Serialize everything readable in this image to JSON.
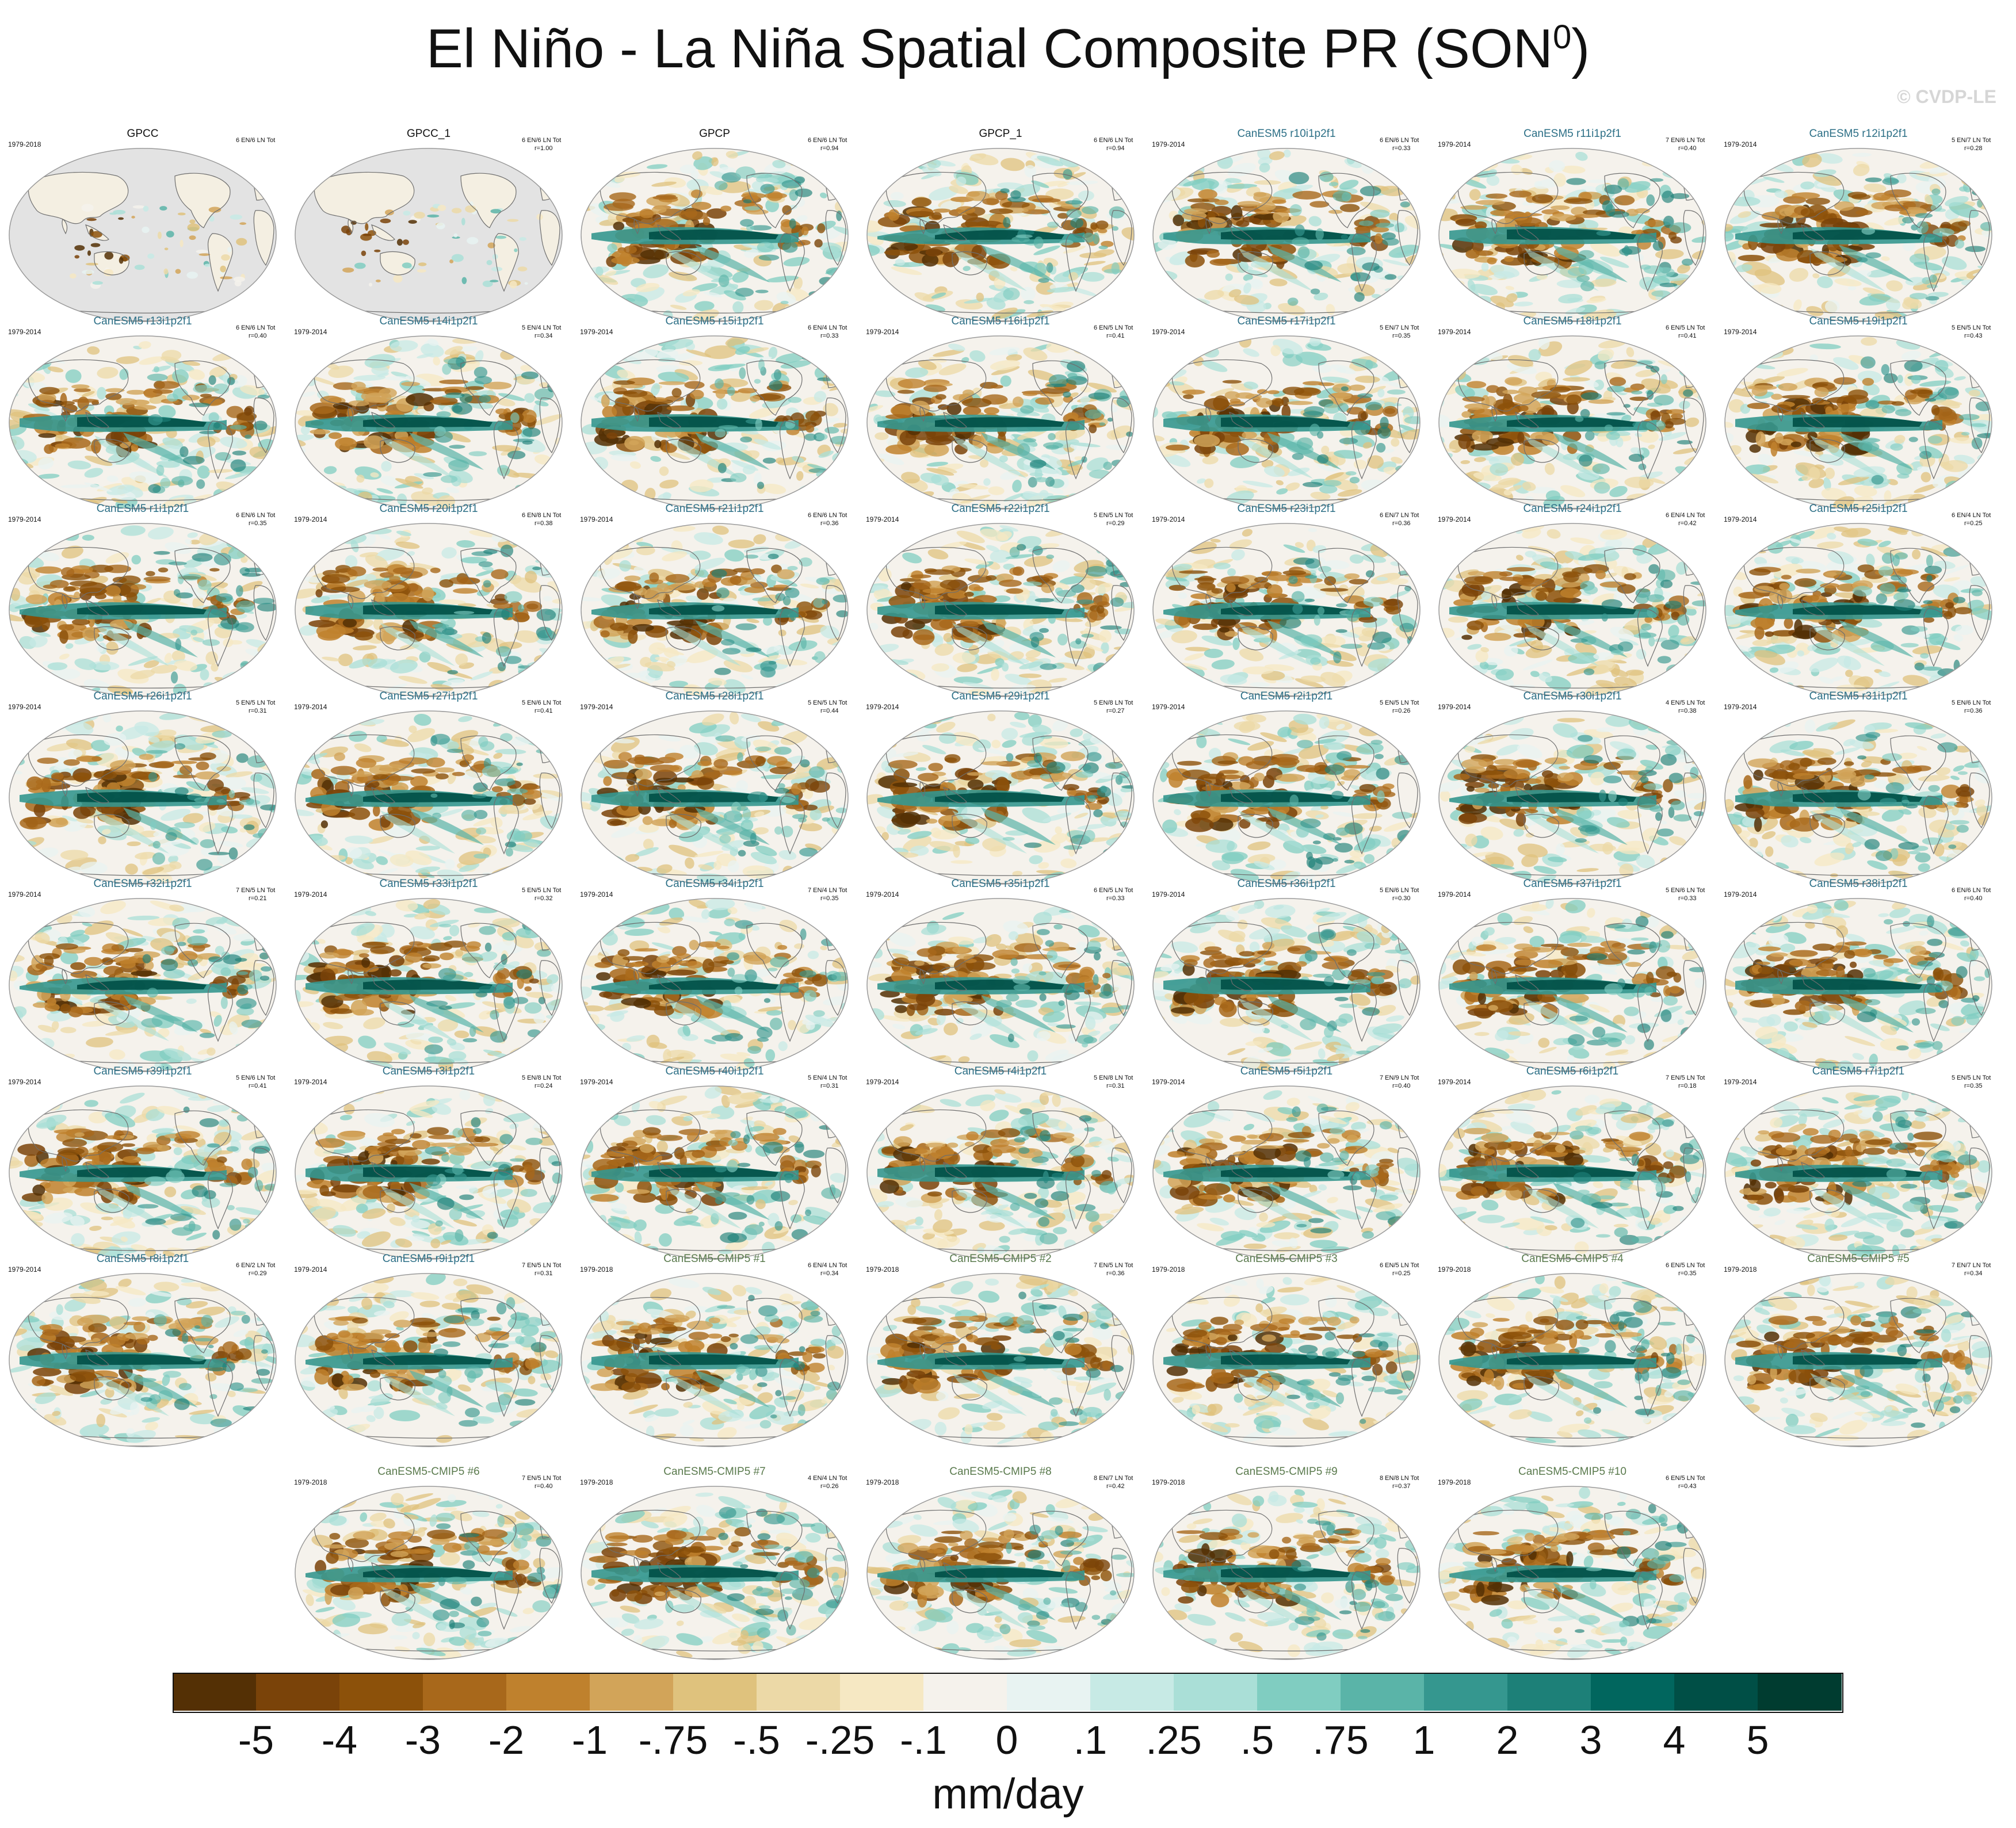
{
  "title": "El Niño - La Niña Spatial Composite PR (SON",
  "title_superscript": "0",
  "title_close": ")",
  "watermark": "© CVDP-LE",
  "colors": {
    "land_missing": "#e3e3e3",
    "ocean_outline": "#9a9a9a",
    "coast": "#6e6e6e"
  },
  "chart_data": {
    "type": "map-composite-grid",
    "variable": "PR",
    "season": "SON0",
    "units": "mm/day",
    "colorbar": {
      "labels": [
        "-5",
        "-4",
        "-3",
        "-2",
        "-1",
        "-.75",
        "-.5",
        "-.25",
        "-.1",
        "0",
        ".1",
        ".25",
        ".5",
        ".75",
        "1",
        "2",
        "3",
        "4",
        "5"
      ],
      "colors": [
        "#543005",
        "#7a4309",
        "#8c510a",
        "#a8681b",
        "#bf812d",
        "#d2a459",
        "#dfc27d",
        "#ecd9a7",
        "#f6e8c3",
        "#f5f2ec",
        "#e8f3f2",
        "#c7eae5",
        "#aadfd7",
        "#80cdc1",
        "#5ab4a8",
        "#35978f",
        "#1d8078",
        "#01665e",
        "#004f46",
        "#003c30"
      ]
    },
    "panels": [
      {
        "title": "GPCC",
        "years": "1979-2018",
        "count": "6 EN/6 LN Tot",
        "r": "",
        "kind": "obs",
        "land_only": true
      },
      {
        "title": "GPCC_1",
        "years": "",
        "count": "6 EN/6 LN Tot",
        "r": "r=1.00",
        "kind": "obs",
        "land_only": true
      },
      {
        "title": "GPCP",
        "years": "",
        "count": "6 EN/6 LN Tot",
        "r": "r=0.94",
        "kind": "obs",
        "land_only": false
      },
      {
        "title": "GPCP_1",
        "years": "",
        "count": "6 EN/6 LN Tot",
        "r": "r=0.94",
        "kind": "obs",
        "land_only": false
      },
      {
        "title": "CanESM5 r10i1p2f1",
        "years": "1979-2014",
        "count": "6 EN/6 LN Tot",
        "r": "r=0.33",
        "kind": "les"
      },
      {
        "title": "CanESM5 r11i1p2f1",
        "years": "1979-2014",
        "count": "7 EN/6 LN Tot",
        "r": "r=0.40",
        "kind": "les"
      },
      {
        "title": "CanESM5 r12i1p2f1",
        "years": "1979-2014",
        "count": "5 EN/7 LN Tot",
        "r": "r=0.28",
        "kind": "les"
      },
      {
        "title": "CanESM5 r13i1p2f1",
        "years": "1979-2014",
        "count": "6 EN/6 LN Tot",
        "r": "r=0.40",
        "kind": "les"
      },
      {
        "title": "CanESM5 r14i1p2f1",
        "years": "1979-2014",
        "count": "5 EN/4 LN Tot",
        "r": "r=0.34",
        "kind": "les"
      },
      {
        "title": "CanESM5 r15i1p2f1",
        "years": "1979-2014",
        "count": "6 EN/4 LN Tot",
        "r": "r=0.33",
        "kind": "les"
      },
      {
        "title": "CanESM5 r16i1p2f1",
        "years": "1979-2014",
        "count": "6 EN/5 LN Tot",
        "r": "r=0.41",
        "kind": "les"
      },
      {
        "title": "CanESM5 r17i1p2f1",
        "years": "1979-2014",
        "count": "5 EN/7 LN Tot",
        "r": "r=0.35",
        "kind": "les"
      },
      {
        "title": "CanESM5 r18i1p2f1",
        "years": "1979-2014",
        "count": "6 EN/5 LN Tot",
        "r": "r=0.41",
        "kind": "les"
      },
      {
        "title": "CanESM5 r19i1p2f1",
        "years": "1979-2014",
        "count": "5 EN/5 LN Tot",
        "r": "r=0.43",
        "kind": "les"
      },
      {
        "title": "CanESM5 r1i1p2f1",
        "years": "1979-2014",
        "count": "6 EN/6 LN Tot",
        "r": "r=0.35",
        "kind": "les"
      },
      {
        "title": "CanESM5 r20i1p2f1",
        "years": "1979-2014",
        "count": "6 EN/8 LN Tot",
        "r": "r=0.38",
        "kind": "les"
      },
      {
        "title": "CanESM5 r21i1p2f1",
        "years": "1979-2014",
        "count": "6 EN/6 LN Tot",
        "r": "r=0.36",
        "kind": "les"
      },
      {
        "title": "CanESM5 r22i1p2f1",
        "years": "1979-2014",
        "count": "5 EN/5 LN Tot",
        "r": "r=0.29",
        "kind": "les"
      },
      {
        "title": "CanESM5 r23i1p2f1",
        "years": "1979-2014",
        "count": "6 EN/7 LN Tot",
        "r": "r=0.36",
        "kind": "les"
      },
      {
        "title": "CanESM5 r24i1p2f1",
        "years": "1979-2014",
        "count": "6 EN/4 LN Tot",
        "r": "r=0.42",
        "kind": "les"
      },
      {
        "title": "CanESM5 r25i1p2f1",
        "years": "1979-2014",
        "count": "6 EN/4 LN Tot",
        "r": "r=0.25",
        "kind": "les"
      },
      {
        "title": "CanESM5 r26i1p2f1",
        "years": "1979-2014",
        "count": "5 EN/5 LN Tot",
        "r": "r=0.31",
        "kind": "les"
      },
      {
        "title": "CanESM5 r27i1p2f1",
        "years": "1979-2014",
        "count": "5 EN/6 LN Tot",
        "r": "r=0.41",
        "kind": "les"
      },
      {
        "title": "CanESM5 r28i1p2f1",
        "years": "1979-2014",
        "count": "5 EN/5 LN Tot",
        "r": "r=0.44",
        "kind": "les"
      },
      {
        "title": "CanESM5 r29i1p2f1",
        "years": "1979-2014",
        "count": "5 EN/8 LN Tot",
        "r": "r=0.27",
        "kind": "les"
      },
      {
        "title": "CanESM5 r2i1p2f1",
        "years": "1979-2014",
        "count": "5 EN/5 LN Tot",
        "r": "r=0.26",
        "kind": "les"
      },
      {
        "title": "CanESM5 r30i1p2f1",
        "years": "1979-2014",
        "count": "4 EN/5 LN Tot",
        "r": "r=0.38",
        "kind": "les"
      },
      {
        "title": "CanESM5 r31i1p2f1",
        "years": "1979-2014",
        "count": "5 EN/6 LN Tot",
        "r": "r=0.36",
        "kind": "les"
      },
      {
        "title": "CanESM5 r32i1p2f1",
        "years": "1979-2014",
        "count": "7 EN/5 LN Tot",
        "r": "r=0.21",
        "kind": "les"
      },
      {
        "title": "CanESM5 r33i1p2f1",
        "years": "1979-2014",
        "count": "5 EN/5 LN Tot",
        "r": "r=0.32",
        "kind": "les"
      },
      {
        "title": "CanESM5 r34i1p2f1",
        "years": "1979-2014",
        "count": "7 EN/4 LN Tot",
        "r": "r=0.35",
        "kind": "les"
      },
      {
        "title": "CanESM5 r35i1p2f1",
        "years": "1979-2014",
        "count": "6 EN/5 LN Tot",
        "r": "r=0.33",
        "kind": "les"
      },
      {
        "title": "CanESM5 r36i1p2f1",
        "years": "1979-2014",
        "count": "5 EN/6 LN Tot",
        "r": "r=0.30",
        "kind": "les"
      },
      {
        "title": "CanESM5 r37i1p2f1",
        "years": "1979-2014",
        "count": "5 EN/6 LN Tot",
        "r": "r=0.33",
        "kind": "les"
      },
      {
        "title": "CanESM5 r38i1p2f1",
        "years": "1979-2014",
        "count": "6 EN/6 LN Tot",
        "r": "r=0.40",
        "kind": "les"
      },
      {
        "title": "CanESM5 r39i1p2f1",
        "years": "1979-2014",
        "count": "5 EN/6 LN Tot",
        "r": "r=0.41",
        "kind": "les"
      },
      {
        "title": "CanESM5 r3i1p2f1",
        "years": "1979-2014",
        "count": "5 EN/8 LN Tot",
        "r": "r=0.24",
        "kind": "les"
      },
      {
        "title": "CanESM5 r40i1p2f1",
        "years": "1979-2014",
        "count": "5 EN/4 LN Tot",
        "r": "r=0.31",
        "kind": "les"
      },
      {
        "title": "CanESM5 r4i1p2f1",
        "years": "1979-2014",
        "count": "5 EN/8 LN Tot",
        "r": "r=0.31",
        "kind": "les"
      },
      {
        "title": "CanESM5 r5i1p2f1",
        "years": "1979-2014",
        "count": "7 EN/9 LN Tot",
        "r": "r=0.40",
        "kind": "les"
      },
      {
        "title": "CanESM5 r6i1p2f1",
        "years": "1979-2014",
        "count": "7 EN/5 LN Tot",
        "r": "r=0.18",
        "kind": "les"
      },
      {
        "title": "CanESM5 r7i1p2f1",
        "years": "1979-2014",
        "count": "5 EN/5 LN Tot",
        "r": "r=0.35",
        "kind": "les"
      },
      {
        "title": "CanESM5 r8i1p2f1",
        "years": "1979-2014",
        "count": "6 EN/2 LN Tot",
        "r": "r=0.29",
        "kind": "les"
      },
      {
        "title": "CanESM5 r9i1p2f1",
        "years": "1979-2014",
        "count": "7 EN/5 LN Tot",
        "r": "r=0.31",
        "kind": "les"
      },
      {
        "title": "CanESM5-CMIP5 #1",
        "years": "1979-2018",
        "count": "6 EN/4 LN Tot",
        "r": "r=0.34",
        "kind": "cmip"
      },
      {
        "title": "CanESM5-CMIP5 #2",
        "years": "1979-2018",
        "count": "7 EN/5 LN Tot",
        "r": "r=0.36",
        "kind": "cmip"
      },
      {
        "title": "CanESM5-CMIP5 #3",
        "years": "1979-2018",
        "count": "6 EN/5 LN Tot",
        "r": "r=0.25",
        "kind": "cmip"
      },
      {
        "title": "CanESM5-CMIP5 #4",
        "years": "1979-2018",
        "count": "6 EN/5 LN Tot",
        "r": "r=0.35",
        "kind": "cmip"
      },
      {
        "title": "CanESM5-CMIP5 #5",
        "years": "1979-2018",
        "count": "7 EN/7 LN Tot",
        "r": "r=0.34",
        "kind": "cmip"
      },
      {
        "title": "CanESM5-CMIP5 #6",
        "years": "1979-2018",
        "count": "7 EN/5 LN Tot",
        "r": "r=0.40",
        "kind": "cmip"
      },
      {
        "title": "CanESM5-CMIP5 #7",
        "years": "1979-2018",
        "count": "4 EN/4 LN Tot",
        "r": "r=0.26",
        "kind": "cmip"
      },
      {
        "title": "CanESM5-CMIP5 #8",
        "years": "1979-2018",
        "count": "8 EN/7 LN Tot",
        "r": "r=0.42",
        "kind": "cmip"
      },
      {
        "title": "CanESM5-CMIP5 #9",
        "years": "1979-2018",
        "count": "8 EN/8 LN Tot",
        "r": "r=0.37",
        "kind": "cmip"
      },
      {
        "title": "CanESM5-CMIP5 #10",
        "years": "1979-2018",
        "count": "6 EN/5 LN Tot",
        "r": "r=0.43",
        "kind": "cmip"
      }
    ]
  }
}
